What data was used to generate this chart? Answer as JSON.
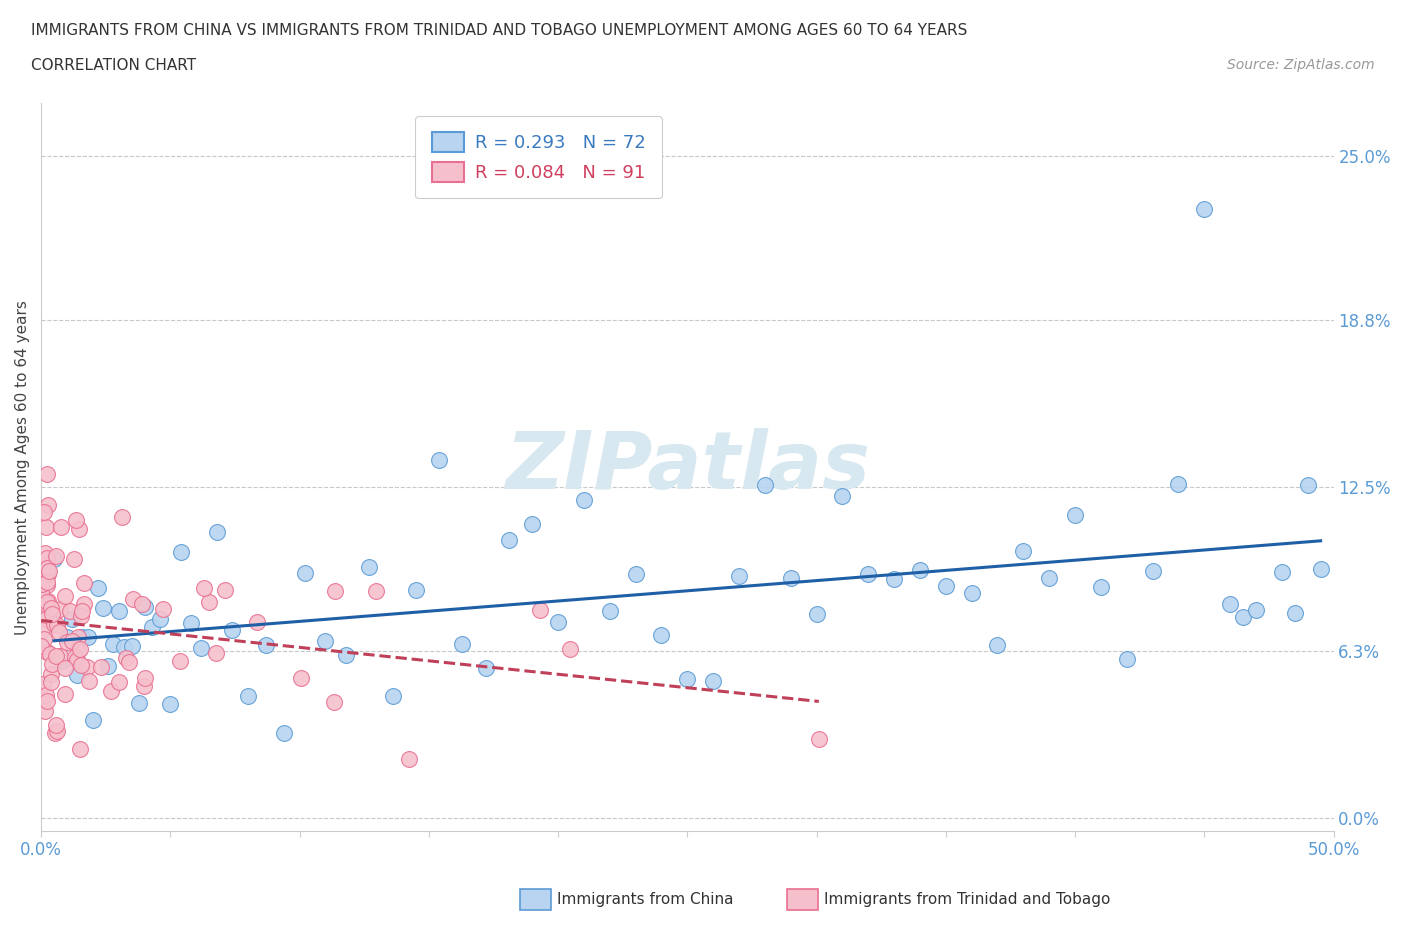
{
  "title_line1": "IMMIGRANTS FROM CHINA VS IMMIGRANTS FROM TRINIDAD AND TOBAGO UNEMPLOYMENT AMONG AGES 60 TO 64 YEARS",
  "title_line2": "CORRELATION CHART",
  "source_text": "Source: ZipAtlas.com",
  "ylabel": "Unemployment Among Ages 60 to 64 years",
  "china_R": 0.293,
  "china_N": 72,
  "tt_R": 0.084,
  "tt_N": 91,
  "xlim": [
    0.0,
    0.5
  ],
  "ylim": [
    -0.005,
    0.27
  ],
  "ytick_vals": [
    0.0,
    0.063,
    0.125,
    0.188,
    0.25
  ],
  "ytick_labels": [
    "0.0%",
    "6.3%",
    "12.5%",
    "18.8%",
    "25.0%"
  ],
  "xtick_positions": [
    0.0,
    0.05,
    0.1,
    0.15,
    0.2,
    0.25,
    0.3,
    0.35,
    0.4,
    0.45,
    0.5
  ],
  "xtick_labels": [
    "0.0%",
    "",
    "",
    "",
    "",
    "",
    "",
    "",
    "",
    "",
    "50.0%"
  ],
  "china_fill_color": "#b8d4f0",
  "china_edge_color": "#5b9bd5",
  "tt_fill_color": "#f5c0cc",
  "tt_edge_color": "#e87090",
  "china_trend_color": "#1f5fa6",
  "tt_trend_color": "#c0405a",
  "watermark_color": "#d8e8f0",
  "background_color": "#ffffff",
  "grid_color": "#c8c8c8",
  "legend_label_china": "Immigrants from China",
  "legend_label_tt": "Immigrants from Trinidad and Tobago",
  "title_fontsize": 11,
  "axis_label_fontsize": 11,
  "tick_fontsize": 12,
  "legend_fontsize": 13
}
